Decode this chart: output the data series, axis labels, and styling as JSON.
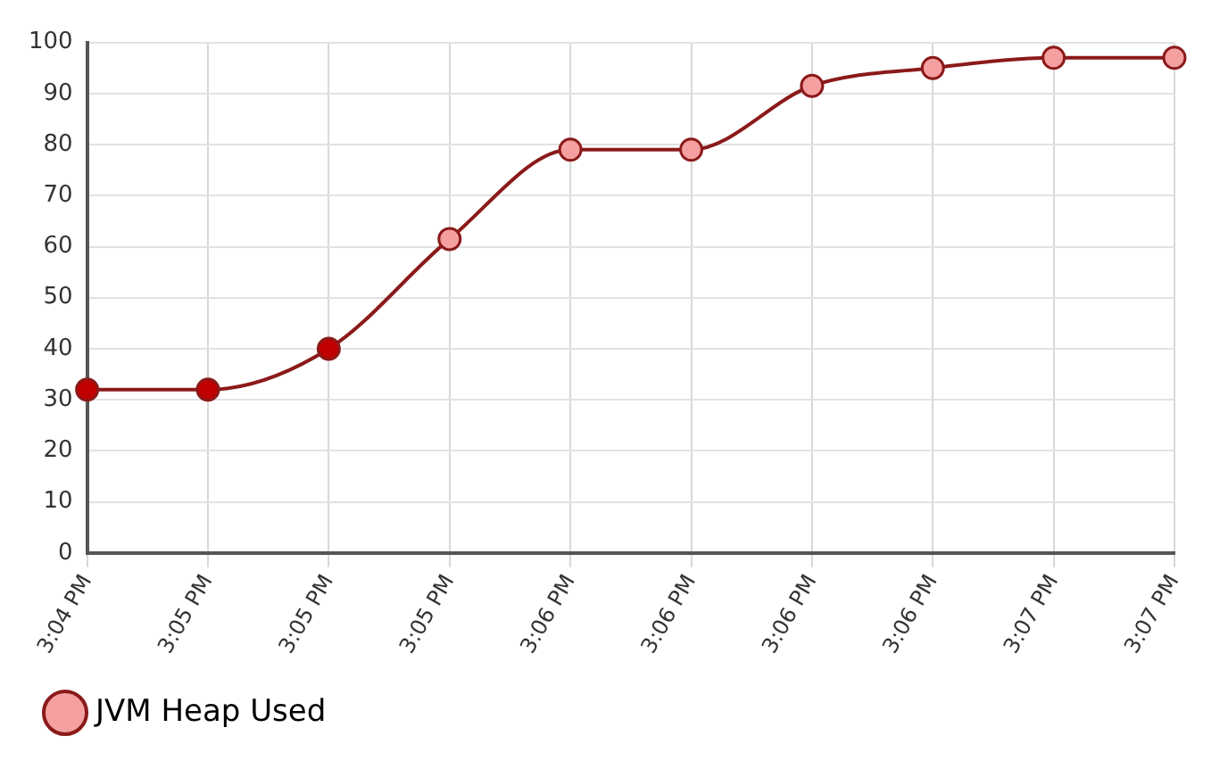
{
  "chart_data": {
    "type": "line",
    "categories": [
      "3:04 PM",
      "3:05 PM",
      "3:05 PM",
      "3:05 PM",
      "3:06 PM",
      "3:06 PM",
      "3:06 PM",
      "3:06 PM",
      "3:07 PM",
      "3:07 PM"
    ],
    "series": [
      {
        "name": "JVM Heap Used",
        "color": "#8b1a1a",
        "colors": [
          "#c00000",
          "#c00000",
          "#c00000",
          "#f4a0a0",
          "#f4a0a0",
          "#f4a0a0",
          "#f4a0a0",
          "#f4a0a0",
          "#f4a0a0",
          "#f4a0a0"
        ],
        "values": [
          32,
          32,
          40,
          61.5,
          79,
          79,
          91.5,
          95,
          97,
          97
        ]
      }
    ],
    "ylim": [
      0,
      100
    ],
    "yticks": [
      0,
      10,
      20,
      30,
      40,
      50,
      60,
      70,
      80,
      90,
      100
    ],
    "grid": true,
    "legend": "bottom left",
    "marker": "circle",
    "line_style": "solid"
  }
}
